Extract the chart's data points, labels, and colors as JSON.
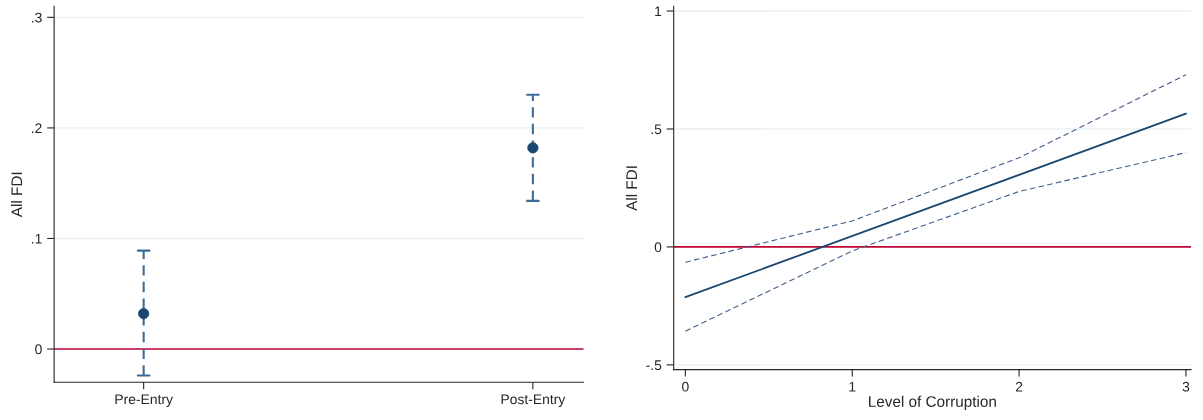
{
  "chart_data": [
    {
      "type": "scatter",
      "ylabel": "All FDI",
      "categories": [
        "Pre-Entry",
        "Post-Entry"
      ],
      "values": [
        0.032,
        0.182
      ],
      "errors": [
        [
          -0.024,
          0.089
        ],
        [
          0.134,
          0.23
        ]
      ],
      "color": "#1a476f",
      "marker": "circle",
      "line_style": "dashed",
      "ylim": [
        -0.03,
        0.31
      ],
      "yticks": [
        {
          "value": 0,
          "label": "0"
        },
        {
          "value": 0.1,
          "label": ".1"
        },
        {
          "value": 0.2,
          "label": ".2"
        },
        {
          "value": 0.3,
          "label": ".3"
        }
      ],
      "grid": "y",
      "ref_lines": [
        {
          "axis": "y",
          "value": 0,
          "color": "#c10534"
        }
      ]
    },
    {
      "type": "line",
      "xlabel": "Level of Corruption",
      "ylabel": "All FDI",
      "series": [
        {
          "color": "#1a476f",
          "x": [
            0,
            3
          ],
          "values": [
            -0.213,
            0.565
          ],
          "line_style": "solid"
        },
        {
          "color": "#3e5f8a",
          "x": [
            0,
            1,
            2,
            3
          ],
          "values": [
            -0.357,
            -0.017,
            0.235,
            0.4
          ],
          "line_style": "dashed"
        },
        {
          "color": "#3e5f8a",
          "x": [
            0,
            1,
            2,
            3
          ],
          "values": [
            -0.065,
            0.11,
            0.378,
            0.73
          ],
          "line_style": "dashed"
        }
      ],
      "xlim": [
        -0.07,
        3.03
      ],
      "xticks": [
        0,
        1,
        2,
        3
      ],
      "ylim": [
        -0.52,
        1.02
      ],
      "yticks": [
        {
          "value": -0.5,
          "label": "-.5"
        },
        {
          "value": 0,
          "label": "0"
        },
        {
          "value": 0.5,
          "label": ".5"
        },
        {
          "value": 1,
          "label": "1"
        }
      ],
      "grid": "y",
      "marker": "none",
      "ref_lines": [
        {
          "axis": "y",
          "value": 0,
          "color": "#c10534"
        }
      ]
    }
  ]
}
